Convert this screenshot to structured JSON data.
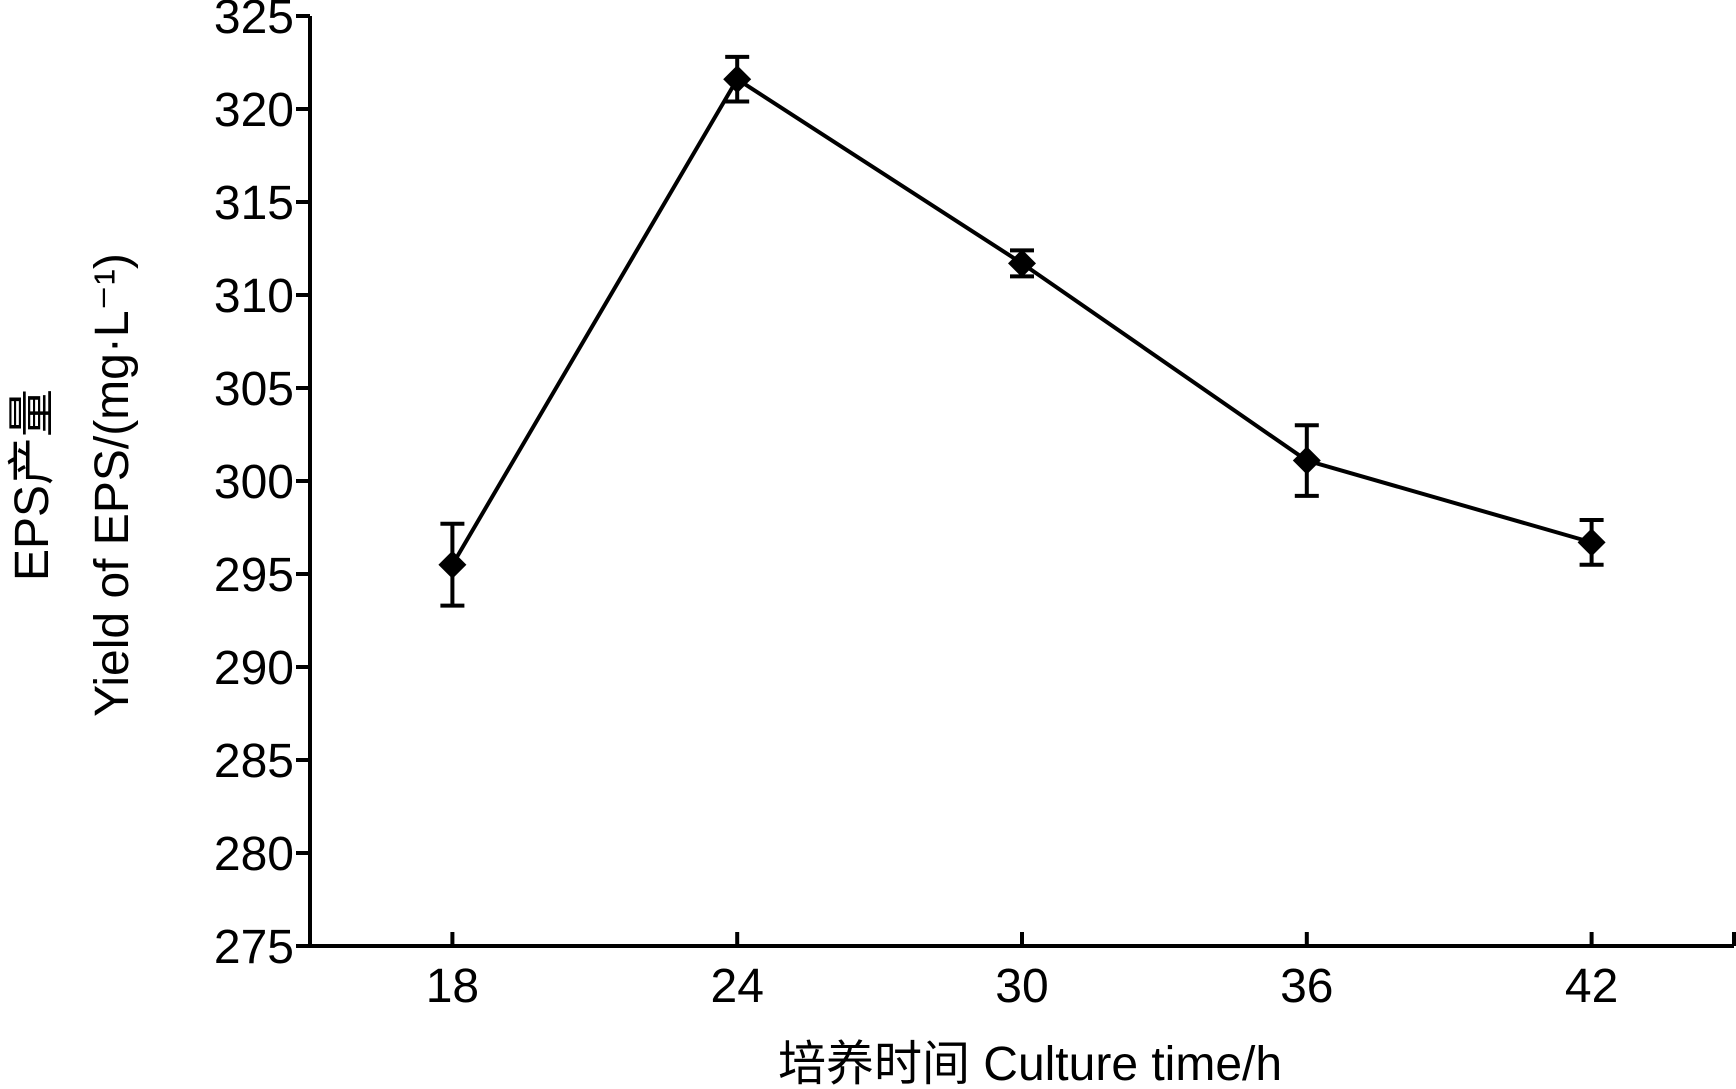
{
  "chart_data": {
    "type": "line",
    "xlabel": "培养时间 Culture time/h",
    "ylabel_line1": "EPS产量",
    "ylabel_line2": "Yield of EPS/(mg·L⁻¹)",
    "categories": [
      "18",
      "24",
      "30",
      "36",
      "42"
    ],
    "x": [
      18,
      24,
      30,
      36,
      42
    ],
    "xlim": [
      15,
      45
    ],
    "ylim": [
      275,
      325
    ],
    "yticks": [
      275,
      280,
      285,
      290,
      295,
      300,
      305,
      310,
      315,
      320,
      325
    ],
    "series": [
      {
        "values": [
          295.5,
          321.6,
          311.7,
          301.1,
          296.7
        ],
        "errors": [
          2.2,
          1.2,
          0.7,
          1.9,
          1.2
        ],
        "marker": "diamond",
        "color": "#000000"
      }
    ],
    "grid": false,
    "legend": "none"
  }
}
